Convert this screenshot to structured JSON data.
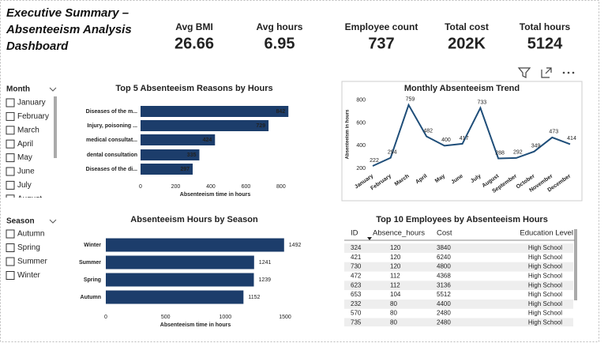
{
  "header": {
    "title": "Executive Summary – Absenteeism Analysis Dashboard"
  },
  "kpis": [
    {
      "label": "Avg BMI",
      "value": "26.66"
    },
    {
      "label": "Avg hours",
      "value": "6.95"
    },
    {
      "label": "Employee count",
      "value": "737"
    },
    {
      "label": "Total cost",
      "value": "202K"
    },
    {
      "label": "Total hours",
      "value": "5124"
    }
  ],
  "slicers": [
    {
      "title": "Month",
      "items": [
        "January",
        "February",
        "March",
        "April",
        "May",
        "June",
        "July",
        "August"
      ]
    },
    {
      "title": "Season",
      "items": [
        "Autumn",
        "Spring",
        "Summer",
        "Winter"
      ]
    }
  ],
  "chart_data": [
    {
      "type": "hbar",
      "title": "Top 5 Absenteeism Reasons by Hours",
      "categories": [
        "Diseases of the m...",
        "Injury, poisoning ...",
        "medical consultat...",
        "dental consultation",
        "Diseases of the di..."
      ],
      "values": [
        842,
        729,
        424,
        335,
        297
      ],
      "color": "#1c3d6b",
      "xlim": [
        0,
        850
      ],
      "xticks": [
        0,
        200,
        400,
        600,
        800
      ],
      "x_label": "Absenteeism time in hours",
      "grid": false
    },
    {
      "type": "line",
      "title": "Monthly Absenteeism Trend",
      "categories": [
        "January",
        "February",
        "March",
        "April",
        "May",
        "June",
        "July",
        "August",
        "September",
        "October",
        "November",
        "December"
      ],
      "values": [
        222,
        294,
        759,
        482,
        400,
        417,
        733,
        288,
        292,
        349,
        473,
        414
      ],
      "color": "#1f4e79",
      "ylim": [
        180,
        820
      ],
      "yticks": [
        200,
        400,
        600,
        800
      ],
      "y_label": "Absenteeism in hours",
      "grid": false
    },
    {
      "type": "hbar",
      "title": "Absenteeism Hours by Season",
      "categories": [
        "Winter",
        "Summer",
        "Spring",
        "Autumn"
      ],
      "values": [
        1492,
        1241,
        1239,
        1152
      ],
      "color": "#1c3d6b",
      "xlim": [
        0,
        1500
      ],
      "xticks": [
        0,
        500,
        1000,
        1500
      ],
      "x_label": "Absenteeism time in hours",
      "grid": false
    }
  ],
  "table": {
    "title": "Top 10 Employees by Absenteeism Hours",
    "columns": [
      "ID",
      "Absence_hours",
      "Cost",
      "Education Level"
    ],
    "rows": [
      [
        "324",
        "120",
        "3840",
        "High School"
      ],
      [
        "421",
        "120",
        "6240",
        "High School"
      ],
      [
        "730",
        "120",
        "4800",
        "High School"
      ],
      [
        "472",
        "112",
        "4368",
        "High School"
      ],
      [
        "623",
        "112",
        "3136",
        "High School"
      ],
      [
        "653",
        "104",
        "5512",
        "High School"
      ],
      [
        "232",
        "80",
        "4400",
        "High School"
      ],
      [
        "570",
        "80",
        "2480",
        "High School"
      ],
      [
        "735",
        "80",
        "2480",
        "High School"
      ]
    ]
  }
}
